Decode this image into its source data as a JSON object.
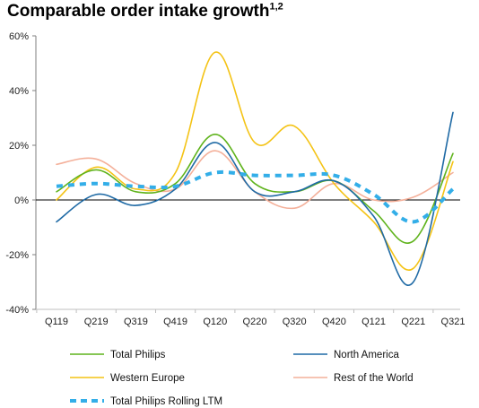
{
  "chart_data": {
    "type": "line",
    "title": "Comparable order intake growth",
    "title_superscript": "1,2",
    "categories": [
      "Q119",
      "Q219",
      "Q319",
      "Q419",
      "Q120",
      "Q220",
      "Q320",
      "Q420",
      "Q121",
      "Q221",
      "Q321"
    ],
    "y_ticks": [
      "-40%",
      "-20%",
      "0%",
      "20%",
      "40%",
      "60%"
    ],
    "ylim": [
      -40,
      60
    ],
    "y_unit": "%",
    "grid": false,
    "legend_position": "bottom",
    "series": [
      {
        "name": "Total Philips",
        "color": "#5fb31c",
        "style": "solid",
        "values": [
          3,
          11,
          3,
          6,
          24,
          6,
          3,
          7,
          -4,
          -15,
          17
        ]
      },
      {
        "name": "North America",
        "color": "#1f6aa5",
        "style": "solid",
        "values": [
          -8,
          2,
          -2,
          4,
          21,
          3,
          3,
          7,
          -6,
          -30,
          32
        ]
      },
      {
        "name": "Western Europe",
        "color": "#f4c315",
        "style": "solid",
        "values": [
          0,
          12,
          4,
          10,
          54,
          21,
          27,
          6,
          -8,
          -25,
          14
        ]
      },
      {
        "name": "Rest of the World",
        "color": "#f4b09a",
        "style": "solid",
        "values": [
          13,
          15,
          6,
          4,
          18,
          3,
          -3,
          6,
          0,
          1,
          10
        ]
      },
      {
        "name": "Total Philips Rolling LTM",
        "color": "#33aee8",
        "style": "dashed",
        "values": [
          5,
          6,
          5,
          5,
          10,
          9,
          9,
          9,
          2,
          -8,
          4
        ]
      }
    ]
  }
}
